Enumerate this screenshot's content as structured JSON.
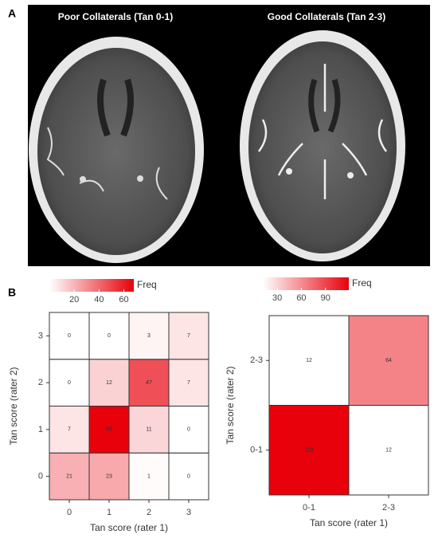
{
  "panel_a": {
    "label": "A",
    "left_title": "Poor Collaterals (Tan 0-1)",
    "right_title": "Good Collaterals (Tan 2-3)"
  },
  "panel_b": {
    "label": "B"
  },
  "chart_data": [
    {
      "type": "heatmap",
      "x_categories": [
        "0",
        "1",
        "2",
        "3"
      ],
      "y_categories": [
        "0",
        "1",
        "2",
        "3"
      ],
      "z": [
        [
          21,
          23,
          1,
          0
        ],
        [
          7,
          68,
          11,
          0
        ],
        [
          0,
          12,
          47,
          7
        ],
        [
          0,
          0,
          3,
          7
        ]
      ],
      "xlabel": "Tan score (rater 1)",
      "ylabel": "Tan score (rater 2)",
      "legend_title": "Freq",
      "clim": [
        0,
        68
      ],
      "cticks": [
        20,
        40,
        60
      ],
      "low_color": "#ffffff",
      "high_color": "#e8000b"
    },
    {
      "type": "heatmap",
      "x_categories": [
        "0-1",
        "2-3"
      ],
      "y_categories": [
        "0-1",
        "2-3"
      ],
      "z": [
        [
          119,
          12
        ],
        [
          12,
          64
        ]
      ],
      "xlabel": "Tan score (rater 1)",
      "ylabel": "Tan score (rater 2)",
      "legend_title": "Freq",
      "clim": [
        12,
        119
      ],
      "cticks": [
        30,
        60,
        90
      ],
      "low_color": "#ffffff",
      "high_color": "#e8000b"
    }
  ]
}
